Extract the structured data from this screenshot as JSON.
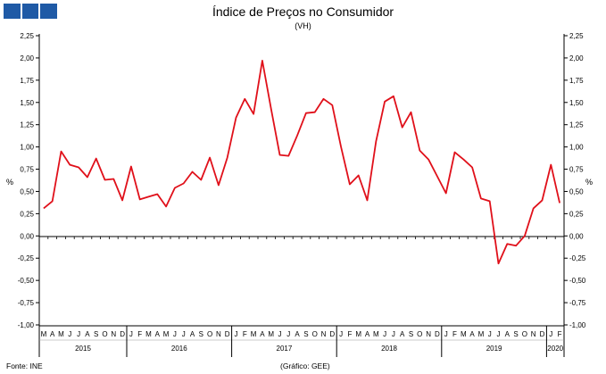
{
  "chart_data": {
    "type": "line",
    "title": "Índice de Preços no Consumidor",
    "subtitle": "(VH)",
    "ylabel": "%",
    "ylim": [
      -1.0,
      2.25
    ],
    "yticks": [
      "2,25",
      "2,00",
      "1,75",
      "1,50",
      "1,25",
      "1,00",
      "0,75",
      "0,50",
      "0,25",
      "0,00",
      "-0,25",
      "-0,50",
      "-0,75",
      "-1,00"
    ],
    "ytick_values": [
      2.25,
      2.0,
      1.75,
      1.5,
      1.25,
      1.0,
      0.75,
      0.5,
      0.25,
      0.0,
      -0.25,
      -0.5,
      -0.75,
      -1.0
    ],
    "grid": false,
    "x_month_labels": [
      "M",
      "A",
      "M",
      "J",
      "J",
      "A",
      "S",
      "O",
      "N",
      "D",
      "J",
      "F",
      "M",
      "A",
      "M",
      "J",
      "J",
      "A",
      "S",
      "O",
      "N",
      "D",
      "J",
      "F",
      "M",
      "A",
      "M",
      "J",
      "J",
      "A",
      "S",
      "O",
      "N",
      "D",
      "J",
      "F",
      "M",
      "A",
      "M",
      "J",
      "J",
      "A",
      "S",
      "O",
      "N",
      "D",
      "J",
      "F",
      "M",
      "A",
      "M",
      "J",
      "J",
      "A",
      "S",
      "O",
      "N",
      "D",
      "J",
      "F"
    ],
    "x_year_labels": [
      {
        "label": "2015",
        "start": 0,
        "end": 9
      },
      {
        "label": "2016",
        "start": 10,
        "end": 21
      },
      {
        "label": "2017",
        "start": 22,
        "end": 33
      },
      {
        "label": "2018",
        "start": 34,
        "end": 45
      },
      {
        "label": "2019",
        "start": 46,
        "end": 57
      },
      {
        "label": "2020",
        "start": 58,
        "end": 59
      }
    ],
    "series": [
      {
        "color": "#e0101a",
        "values": [
          0.31,
          0.39,
          0.95,
          0.8,
          0.77,
          0.66,
          0.87,
          0.63,
          0.64,
          0.4,
          0.78,
          0.41,
          0.44,
          0.47,
          0.33,
          0.54,
          0.59,
          0.72,
          0.63,
          0.88,
          0.57,
          0.88,
          1.33,
          1.54,
          1.37,
          1.97,
          1.43,
          0.91,
          0.9,
          1.13,
          1.38,
          1.39,
          1.54,
          1.47,
          1.0,
          0.58,
          0.68,
          0.4,
          1.06,
          1.51,
          1.57,
          1.22,
          1.39,
          0.96,
          0.86,
          0.67,
          0.48,
          0.94,
          0.86,
          0.77,
          0.42,
          0.39,
          -0.31,
          -0.09,
          -0.11,
          0.0,
          0.31,
          0.4,
          0.8,
          0.37
        ]
      }
    ]
  },
  "footer": {
    "source": "Fonte: INE",
    "credit": "(Gráfico: GEE)"
  },
  "colors": {
    "line": "#e0101a",
    "logo": "#1f5aa6",
    "axis": "#000000"
  }
}
